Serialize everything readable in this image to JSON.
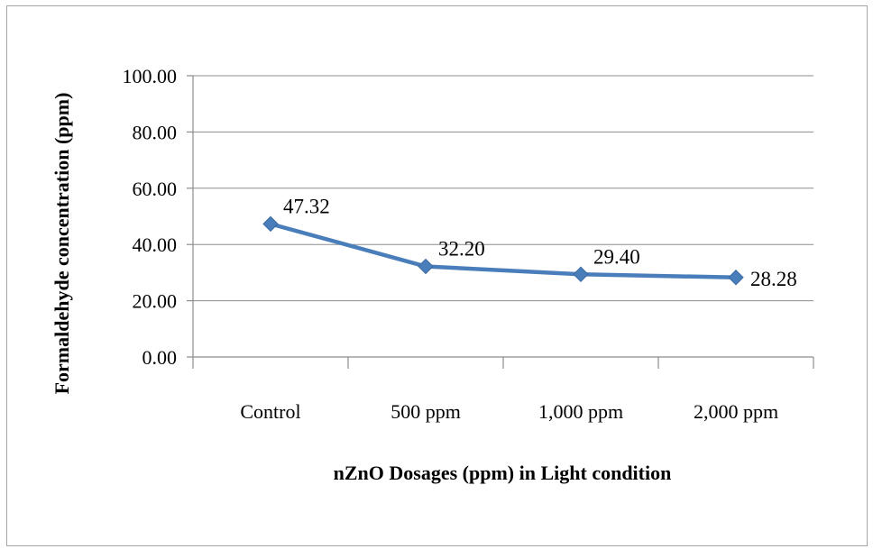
{
  "chart_data": {
    "type": "line",
    "title": "",
    "xlabel": "nZnO Dosages (ppm) in Light condition",
    "ylabel": "Formaldehyde  concentration (ppm)",
    "categories": [
      "Control",
      "500 ppm",
      "1,000 ppm",
      "2,000 ppm"
    ],
    "series": [
      {
        "values": [
          47.32,
          32.2,
          29.4,
          28.28
        ],
        "labels": [
          "47.32",
          "32.20",
          "29.40",
          "28.28"
        ]
      }
    ],
    "ylim": [
      0,
      100
    ],
    "yticks": [
      "0.00",
      "20.00",
      "40.00",
      "60.00",
      "80.00",
      "100.00"
    ],
    "grid": true,
    "legend": "none",
    "colors": {
      "series": "#4a7ebb",
      "marker": "#4a7ebb"
    },
    "marker": "diamond-icon"
  }
}
